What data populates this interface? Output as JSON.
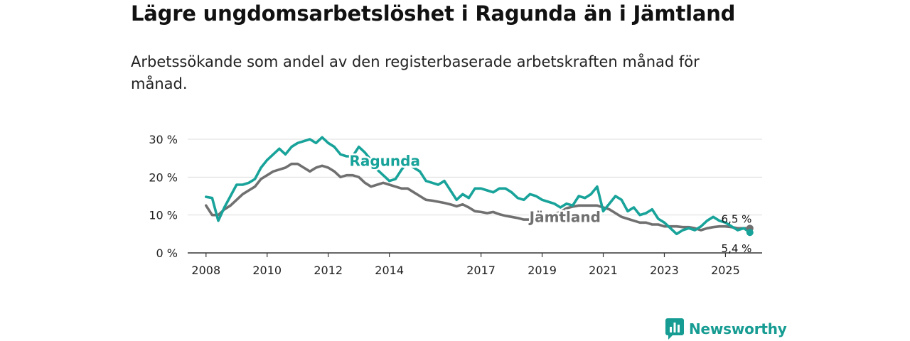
{
  "header": {
    "title": "Lägre ungdomsarbetslöshet i Ragunda än i Jämtland",
    "subtitle": "Arbetssökande som andel av den registerbaserade arbetskraften månad för månad."
  },
  "brand": {
    "name": "Newsworthy",
    "icon": "newsworthy-logo-icon",
    "color": "#169c92"
  },
  "chart_data": {
    "type": "line",
    "title": "Lägre ungdomsarbetslöshet i Ragunda än i Jämtland",
    "subtitle": "Arbetssökande som andel av den registerbaserade arbetskraften månad för månad.",
    "xlabel": "",
    "ylabel": "",
    "xlim": [
      2007.4,
      2026.2
    ],
    "ylim": [
      0,
      30
    ],
    "grid": true,
    "x_ticks": [
      {
        "value": 2008,
        "label": "2008"
      },
      {
        "value": 2010,
        "label": "2010"
      },
      {
        "value": 2012,
        "label": "2012"
      },
      {
        "value": 2014,
        "label": "2014"
      },
      {
        "value": 2017,
        "label": "2017"
      },
      {
        "value": 2019,
        "label": "2019"
      },
      {
        "value": 2021,
        "label": "2021"
      },
      {
        "value": 2023,
        "label": "2023"
      },
      {
        "value": 2025,
        "label": "2025"
      }
    ],
    "y_ticks": [
      {
        "value": 0,
        "label": "0 %"
      },
      {
        "value": 10,
        "label": "10 %"
      },
      {
        "value": 20,
        "label": "20 %"
      },
      {
        "value": 30,
        "label": "30 %"
      }
    ],
    "series": [
      {
        "name": "Ragunda",
        "color": "#18a39a",
        "end_label": "5,4 %",
        "x": [
          2008.0,
          2008.2,
          2008.4,
          2008.6,
          2008.8,
          2009.0,
          2009.2,
          2009.4,
          2009.6,
          2009.8,
          2010.0,
          2010.2,
          2010.4,
          2010.6,
          2010.8,
          2011.0,
          2011.2,
          2011.4,
          2011.6,
          2011.8,
          2012.0,
          2012.2,
          2012.4,
          2012.6,
          2012.8,
          2013.0,
          2013.2,
          2013.4,
          2013.6,
          2013.8,
          2014.0,
          2014.2,
          2014.4,
          2014.6,
          2014.8,
          2015.0,
          2015.2,
          2015.4,
          2015.6,
          2015.8,
          2016.0,
          2016.2,
          2016.4,
          2016.6,
          2016.8,
          2017.0,
          2017.2,
          2017.4,
          2017.6,
          2017.8,
          2018.0,
          2018.2,
          2018.4,
          2018.6,
          2018.8,
          2019.0,
          2019.2,
          2019.4,
          2019.6,
          2019.8,
          2020.0,
          2020.2,
          2020.4,
          2020.6,
          2020.8,
          2021.0,
          2021.2,
          2021.4,
          2021.6,
          2021.8,
          2022.0,
          2022.2,
          2022.4,
          2022.6,
          2022.8,
          2023.0,
          2023.2,
          2023.4,
          2023.6,
          2023.8,
          2024.0,
          2024.2,
          2024.4,
          2024.6,
          2024.8,
          2025.0,
          2025.2,
          2025.4,
          2025.6,
          2025.8
        ],
        "values": [
          14.8,
          14.5,
          8.5,
          12.0,
          15.0,
          18.0,
          18.0,
          18.5,
          19.5,
          22.5,
          24.5,
          26.0,
          27.5,
          26.0,
          28.0,
          29.0,
          29.5,
          30.0,
          29.0,
          30.5,
          29.0,
          28.0,
          26.0,
          25.5,
          25.5,
          28.0,
          26.5,
          24.5,
          22.0,
          20.5,
          19.0,
          19.5,
          22.0,
          24.0,
          22.5,
          21.5,
          19.0,
          18.5,
          18.0,
          19.0,
          16.5,
          14.0,
          15.5,
          14.5,
          17.0,
          17.0,
          16.5,
          16.0,
          17.0,
          17.0,
          16.0,
          14.5,
          14.0,
          15.5,
          15.0,
          14.0,
          13.5,
          13.0,
          12.0,
          13.0,
          12.5,
          15.0,
          14.5,
          15.5,
          17.5,
          11.0,
          13.0,
          15.0,
          14.0,
          11.0,
          12.0,
          10.0,
          10.5,
          11.5,
          9.0,
          8.0,
          6.5,
          5.0,
          6.0,
          6.5,
          6.0,
          7.0,
          8.5,
          9.5,
          8.5,
          8.0,
          7.0,
          6.0,
          6.5,
          5.4
        ]
      },
      {
        "name": "Jämtland",
        "color": "#707070",
        "end_label": "6,5 %",
        "x": [
          2008.0,
          2008.2,
          2008.4,
          2008.6,
          2008.8,
          2009.0,
          2009.2,
          2009.4,
          2009.6,
          2009.8,
          2010.0,
          2010.2,
          2010.4,
          2010.6,
          2010.8,
          2011.0,
          2011.2,
          2011.4,
          2011.6,
          2011.8,
          2012.0,
          2012.2,
          2012.4,
          2012.6,
          2012.8,
          2013.0,
          2013.2,
          2013.4,
          2013.6,
          2013.8,
          2014.0,
          2014.2,
          2014.4,
          2014.6,
          2014.8,
          2015.0,
          2015.2,
          2015.4,
          2015.6,
          2015.8,
          2016.0,
          2016.2,
          2016.4,
          2016.6,
          2016.8,
          2017.0,
          2017.2,
          2017.4,
          2017.6,
          2017.8,
          2018.0,
          2018.2,
          2018.4,
          2018.6,
          2018.8,
          2019.0,
          2019.2,
          2019.4,
          2019.6,
          2019.8,
          2020.0,
          2020.2,
          2020.4,
          2020.6,
          2020.8,
          2021.0,
          2021.2,
          2021.4,
          2021.6,
          2021.8,
          2022.0,
          2022.2,
          2022.4,
          2022.6,
          2022.8,
          2023.0,
          2023.2,
          2023.4,
          2023.6,
          2023.8,
          2024.0,
          2024.2,
          2024.4,
          2024.6,
          2024.8,
          2025.0,
          2025.2,
          2025.4,
          2025.6,
          2025.8
        ],
        "values": [
          12.5,
          10.0,
          10.0,
          11.5,
          12.5,
          14.0,
          15.5,
          16.5,
          17.5,
          19.5,
          20.5,
          21.5,
          22.0,
          22.5,
          23.5,
          23.5,
          22.5,
          21.5,
          22.5,
          23.0,
          22.5,
          21.5,
          20.0,
          20.5,
          20.5,
          20.0,
          18.5,
          17.5,
          18.0,
          18.5,
          18.0,
          17.5,
          17.0,
          17.0,
          16.0,
          15.0,
          14.0,
          13.8,
          13.5,
          13.2,
          12.8,
          12.3,
          12.8,
          12.0,
          11.0,
          10.8,
          10.5,
          10.8,
          10.2,
          9.8,
          9.5,
          9.2,
          8.8,
          8.8,
          9.2,
          9.5,
          9.8,
          10.2,
          10.8,
          11.8,
          12.2,
          12.5,
          12.5,
          12.5,
          12.5,
          12.0,
          11.5,
          10.5,
          9.5,
          9.0,
          8.5,
          8.0,
          8.0,
          7.5,
          7.5,
          7.0,
          7.0,
          7.0,
          6.8,
          6.8,
          6.5,
          6.0,
          6.5,
          6.8,
          7.0,
          7.0,
          6.8,
          6.5,
          6.5,
          6.5
        ]
      }
    ],
    "annotations": [
      {
        "text": "Ragunda",
        "series": "Ragunda",
        "x": 2013.85,
        "y": 24.3
      },
      {
        "text": "Jämtland",
        "series": "Jämtland",
        "x": 2019.75,
        "y": 9.5
      }
    ]
  }
}
